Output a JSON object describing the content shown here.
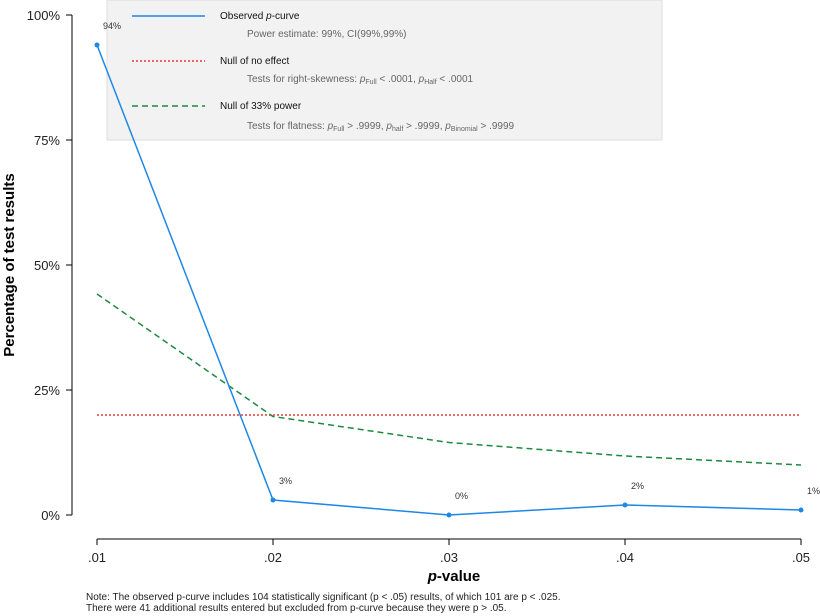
{
  "chart_data": {
    "type": "line",
    "x": [
      0.01,
      0.02,
      0.03,
      0.04,
      0.05
    ],
    "x_tick_labels": [
      ".01",
      ".02",
      ".03",
      ".04",
      ".05"
    ],
    "y_tick_labels": [
      "0%",
      "25%",
      "50%",
      "75%",
      "100%"
    ],
    "ylim": [
      0,
      100
    ],
    "xlabel_prefix": "p",
    "xlabel_suffix": "-value",
    "ylabel": "Percentage of test results",
    "grid": false,
    "legend_position": "top-left",
    "series": [
      {
        "name": "Observed p-curve",
        "style": "solid",
        "color": "#1e88e5",
        "values": [
          94,
          3,
          0,
          2,
          1
        ],
        "labels": [
          "94%",
          "3%",
          "0%",
          "2%",
          "1%"
        ]
      },
      {
        "name": "Null of no effect",
        "style": "dotted",
        "color": "#e53935",
        "values": [
          20,
          20,
          20,
          20,
          20
        ]
      },
      {
        "name": "Null of 33% power",
        "style": "dashed",
        "color": "#1b8a3e",
        "values": [
          44.2,
          19.7,
          14.5,
          11.8,
          10.0
        ]
      }
    ],
    "legend": {
      "observed_prefix": "Observed ",
      "observed_p": "p",
      "observed_suffix": "-curve",
      "power_estimate": "Power estimate: 99%, CI(99%,99%)",
      "null_label": "Null of no effect",
      "skew_prefix": "Tests for right-skewness: ",
      "skew_full_value": " < .0001,  ",
      "skew_half_value": " < .0001",
      "flat_label": "Null of 33% power",
      "flat_prefix": "Tests for flatness: ",
      "flat_full_value": " > .9999,  ",
      "flat_half_value": " > .9999,  ",
      "flat_binomial_value": " > .9999",
      "p": "p",
      "sub_full": "Full",
      "sub_half_cap": "Half",
      "sub_half": "half",
      "sub_binomial": "Binomial"
    }
  },
  "note": {
    "line1": "Note: The observed p-curve includes 104 statistically significant (p < .05) results, of which 101 are p < .025.",
    "line2": "There were 41 additional results entered but excluded from p-curve because they were p > .05."
  }
}
